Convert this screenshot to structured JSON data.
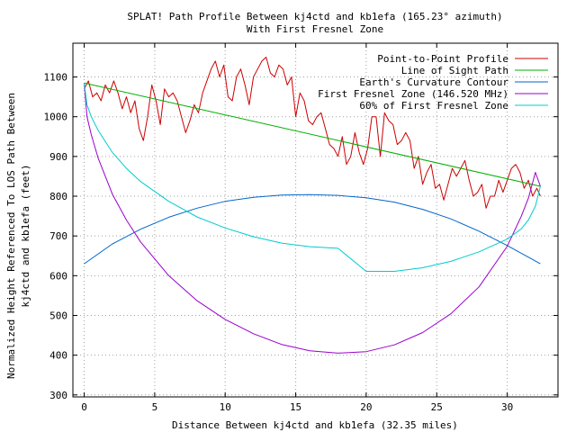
{
  "chart_data": {
    "type": "line",
    "title": "SPLAT! Path Profile Between kj4ctd and kb1efa (165.23° azimuth)",
    "subtitle": "With First Fresnel Zone",
    "xlabel": "Distance Between kj4ctd and kb1efa (32.35 miles)",
    "ylabel_line1": "Normalized Height Referenced To LOS Path Between",
    "ylabel_line2": "kj4ctd and kb1efa (feet)",
    "xlim": [
      -0.8,
      33.6
    ],
    "ylim": [
      295,
      1185
    ],
    "x_ticks": [
      0,
      5,
      10,
      15,
      20,
      25,
      30
    ],
    "y_ticks": [
      300,
      400,
      500,
      600,
      700,
      800,
      900,
      1000,
      1100
    ],
    "grid": true,
    "legend_position": "top-right",
    "series": [
      {
        "name": "Point-to-Point Profile",
        "color": "#cc0000",
        "x": [
          0,
          0.3,
          0.6,
          0.9,
          1.2,
          1.5,
          1.8,
          2.1,
          2.4,
          2.7,
          3.0,
          3.3,
          3.6,
          3.9,
          4.2,
          4.5,
          4.8,
          5.1,
          5.4,
          5.7,
          6.0,
          6.3,
          6.6,
          6.9,
          7.2,
          7.5,
          7.8,
          8.1,
          8.4,
          8.7,
          9.0,
          9.3,
          9.6,
          9.9,
          10.2,
          10.5,
          10.8,
          11.1,
          11.4,
          11.7,
          12.0,
          12.3,
          12.6,
          12.9,
          13.2,
          13.5,
          13.8,
          14.1,
          14.4,
          14.7,
          15.0,
          15.3,
          15.6,
          15.9,
          16.2,
          16.5,
          16.8,
          17.1,
          17.4,
          17.7,
          18.0,
          18.3,
          18.6,
          18.9,
          19.2,
          19.5,
          19.8,
          20.1,
          20.4,
          20.7,
          21.0,
          21.3,
          21.6,
          21.9,
          22.2,
          22.5,
          22.8,
          23.1,
          23.4,
          23.7,
          24.0,
          24.3,
          24.6,
          24.9,
          25.2,
          25.5,
          25.8,
          26.1,
          26.4,
          26.7,
          27.0,
          27.3,
          27.6,
          27.9,
          28.2,
          28.5,
          28.8,
          29.1,
          29.4,
          29.7,
          30.0,
          30.3,
          30.6,
          30.9,
          31.2,
          31.5,
          31.8,
          32.1,
          32.35
        ],
        "y": [
          1070,
          1090,
          1050,
          1060,
          1040,
          1080,
          1060,
          1090,
          1060,
          1020,
          1050,
          1010,
          1040,
          970,
          940,
          1000,
          1080,
          1040,
          980,
          1070,
          1050,
          1060,
          1040,
          1000,
          960,
          990,
          1030,
          1010,
          1060,
          1090,
          1120,
          1140,
          1100,
          1130,
          1050,
          1040,
          1100,
          1120,
          1080,
          1030,
          1100,
          1120,
          1140,
          1150,
          1110,
          1100,
          1130,
          1120,
          1080,
          1100,
          1000,
          1060,
          1040,
          990,
          980,
          1000,
          1010,
          970,
          930,
          920,
          900,
          950,
          880,
          900,
          960,
          910,
          880,
          920,
          1000,
          1000,
          900,
          1010,
          990,
          980,
          930,
          940,
          960,
          940,
          870,
          900,
          830,
          860,
          880,
          820,
          830,
          790,
          830,
          870,
          850,
          870,
          890,
          840,
          800,
          810,
          830,
          770,
          800,
          800,
          840,
          810,
          840,
          870,
          880,
          860,
          820,
          840,
          800,
          820,
          800
        ]
      },
      {
        "name": "Line of Sight Path",
        "color": "#00b000",
        "x": [
          0,
          32.35
        ],
        "y": [
          1085,
          825
        ]
      },
      {
        "name": "Earth's Curvature Contour",
        "color": "#0066cc",
        "x": [
          0,
          2,
          4,
          6,
          8,
          10,
          12,
          14,
          16,
          18,
          20,
          22,
          24,
          26,
          28,
          30,
          32.35
        ],
        "y": [
          630,
          680,
          717,
          747,
          770,
          787,
          797,
          803,
          804,
          802,
          796,
          785,
          767,
          743,
          712,
          676,
          630
        ]
      },
      {
        "name": "First Fresnel Zone (146.520 MHz)",
        "color": "#9900cc",
        "x": [
          0,
          0.2,
          0.5,
          1,
          2,
          3,
          4,
          6,
          8,
          10,
          12,
          14,
          16,
          18,
          20,
          22,
          24,
          26,
          28,
          30,
          31,
          31.5,
          32,
          32.35
        ],
        "y": [
          1085,
          1000,
          955,
          895,
          805,
          740,
          685,
          600,
          537,
          490,
          454,
          427,
          411,
          405,
          409,
          426,
          457,
          504,
          572,
          674,
          750,
          795,
          860,
          825
        ]
      },
      {
        "name": "60% of First Fresnel Zone",
        "color": "#00cccc",
        "x": [
          0,
          0.2,
          0.5,
          1,
          2,
          3,
          4,
          6,
          8,
          10,
          12,
          14,
          16,
          18,
          20,
          22,
          24,
          26,
          28,
          30,
          31,
          31.5,
          32,
          32.35
        ],
        "y": [
          1085,
          1030,
          1000,
          965,
          910,
          870,
          837,
          787,
          748,
          720,
          698,
          682,
          673,
          669,
          611,
          611,
          620,
          636,
          660,
          692,
          718,
          740,
          775,
          825
        ]
      }
    ]
  }
}
